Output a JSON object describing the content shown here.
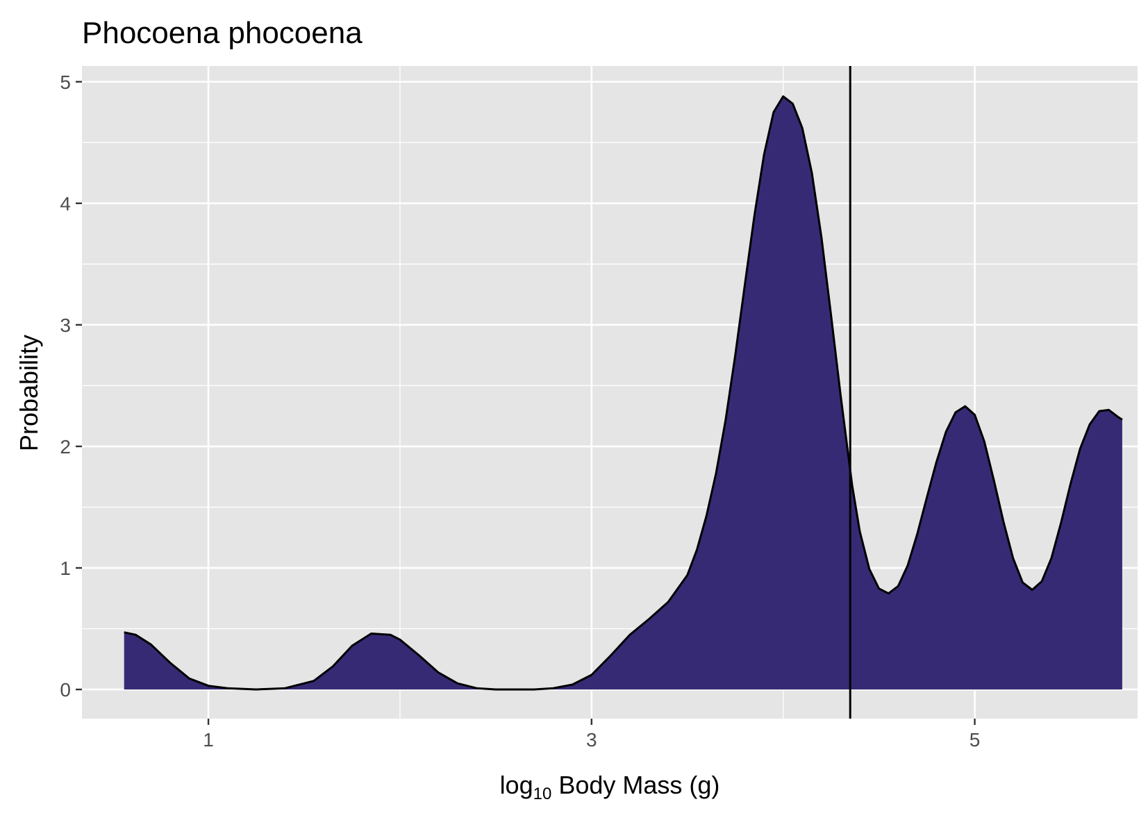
{
  "chart_data": {
    "type": "area",
    "title": "Phocoena phocoena",
    "xlabel": "log10 Body Mass (g)",
    "xlabel_parts": {
      "pre": "log",
      "sub": "10",
      "post": " Body Mass ",
      "unit": "g"
    },
    "ylabel": "Probability",
    "xlim": [
      0.34,
      5.85
    ],
    "ylim": [
      -0.24,
      5.13
    ],
    "x_ticks": [
      1,
      3,
      5
    ],
    "y_ticks": [
      0,
      1,
      2,
      3,
      4,
      5
    ],
    "grid": true,
    "legend": "none",
    "series": [
      {
        "fill": "#372a75",
        "line": "#000000",
        "x": [
          0.56,
          0.62,
          0.7,
          0.8,
          0.9,
          1.0,
          1.1,
          1.25,
          1.4,
          1.55,
          1.65,
          1.75,
          1.85,
          1.95,
          2.0,
          2.1,
          2.2,
          2.3,
          2.4,
          2.5,
          2.6,
          2.7,
          2.8,
          2.9,
          3.0,
          3.1,
          3.2,
          3.3,
          3.4,
          3.5,
          3.55,
          3.6,
          3.65,
          3.7,
          3.75,
          3.8,
          3.85,
          3.9,
          3.95,
          4.0,
          4.05,
          4.1,
          4.15,
          4.2,
          4.25,
          4.3,
          4.33,
          4.36,
          4.4,
          4.45,
          4.5,
          4.55,
          4.6,
          4.65,
          4.7,
          4.75,
          4.8,
          4.85,
          4.9,
          4.95,
          5.0,
          5.05,
          5.1,
          5.15,
          5.2,
          5.25,
          5.3,
          5.35,
          5.4,
          5.45,
          5.5,
          5.55,
          5.6,
          5.65,
          5.7,
          5.75,
          5.77
        ],
        "y": [
          0.47,
          0.45,
          0.37,
          0.22,
          0.09,
          0.03,
          0.01,
          0.0,
          0.01,
          0.07,
          0.19,
          0.36,
          0.46,
          0.45,
          0.41,
          0.28,
          0.14,
          0.05,
          0.01,
          0.0,
          0.0,
          0.0,
          0.01,
          0.04,
          0.12,
          0.28,
          0.45,
          0.58,
          0.72,
          0.94,
          1.15,
          1.43,
          1.78,
          2.22,
          2.75,
          3.33,
          3.9,
          4.4,
          4.75,
          4.88,
          4.82,
          4.62,
          4.25,
          3.72,
          3.08,
          2.42,
          2.05,
          1.68,
          1.3,
          0.99,
          0.83,
          0.79,
          0.85,
          1.02,
          1.28,
          1.58,
          1.87,
          2.12,
          2.28,
          2.33,
          2.26,
          2.04,
          1.72,
          1.38,
          1.08,
          0.88,
          0.82,
          0.89,
          1.08,
          1.37,
          1.69,
          1.98,
          2.18,
          2.29,
          2.3,
          2.24,
          2.22
        ]
      }
    ],
    "vline": {
      "x": 4.35,
      "color": "#000000"
    }
  }
}
